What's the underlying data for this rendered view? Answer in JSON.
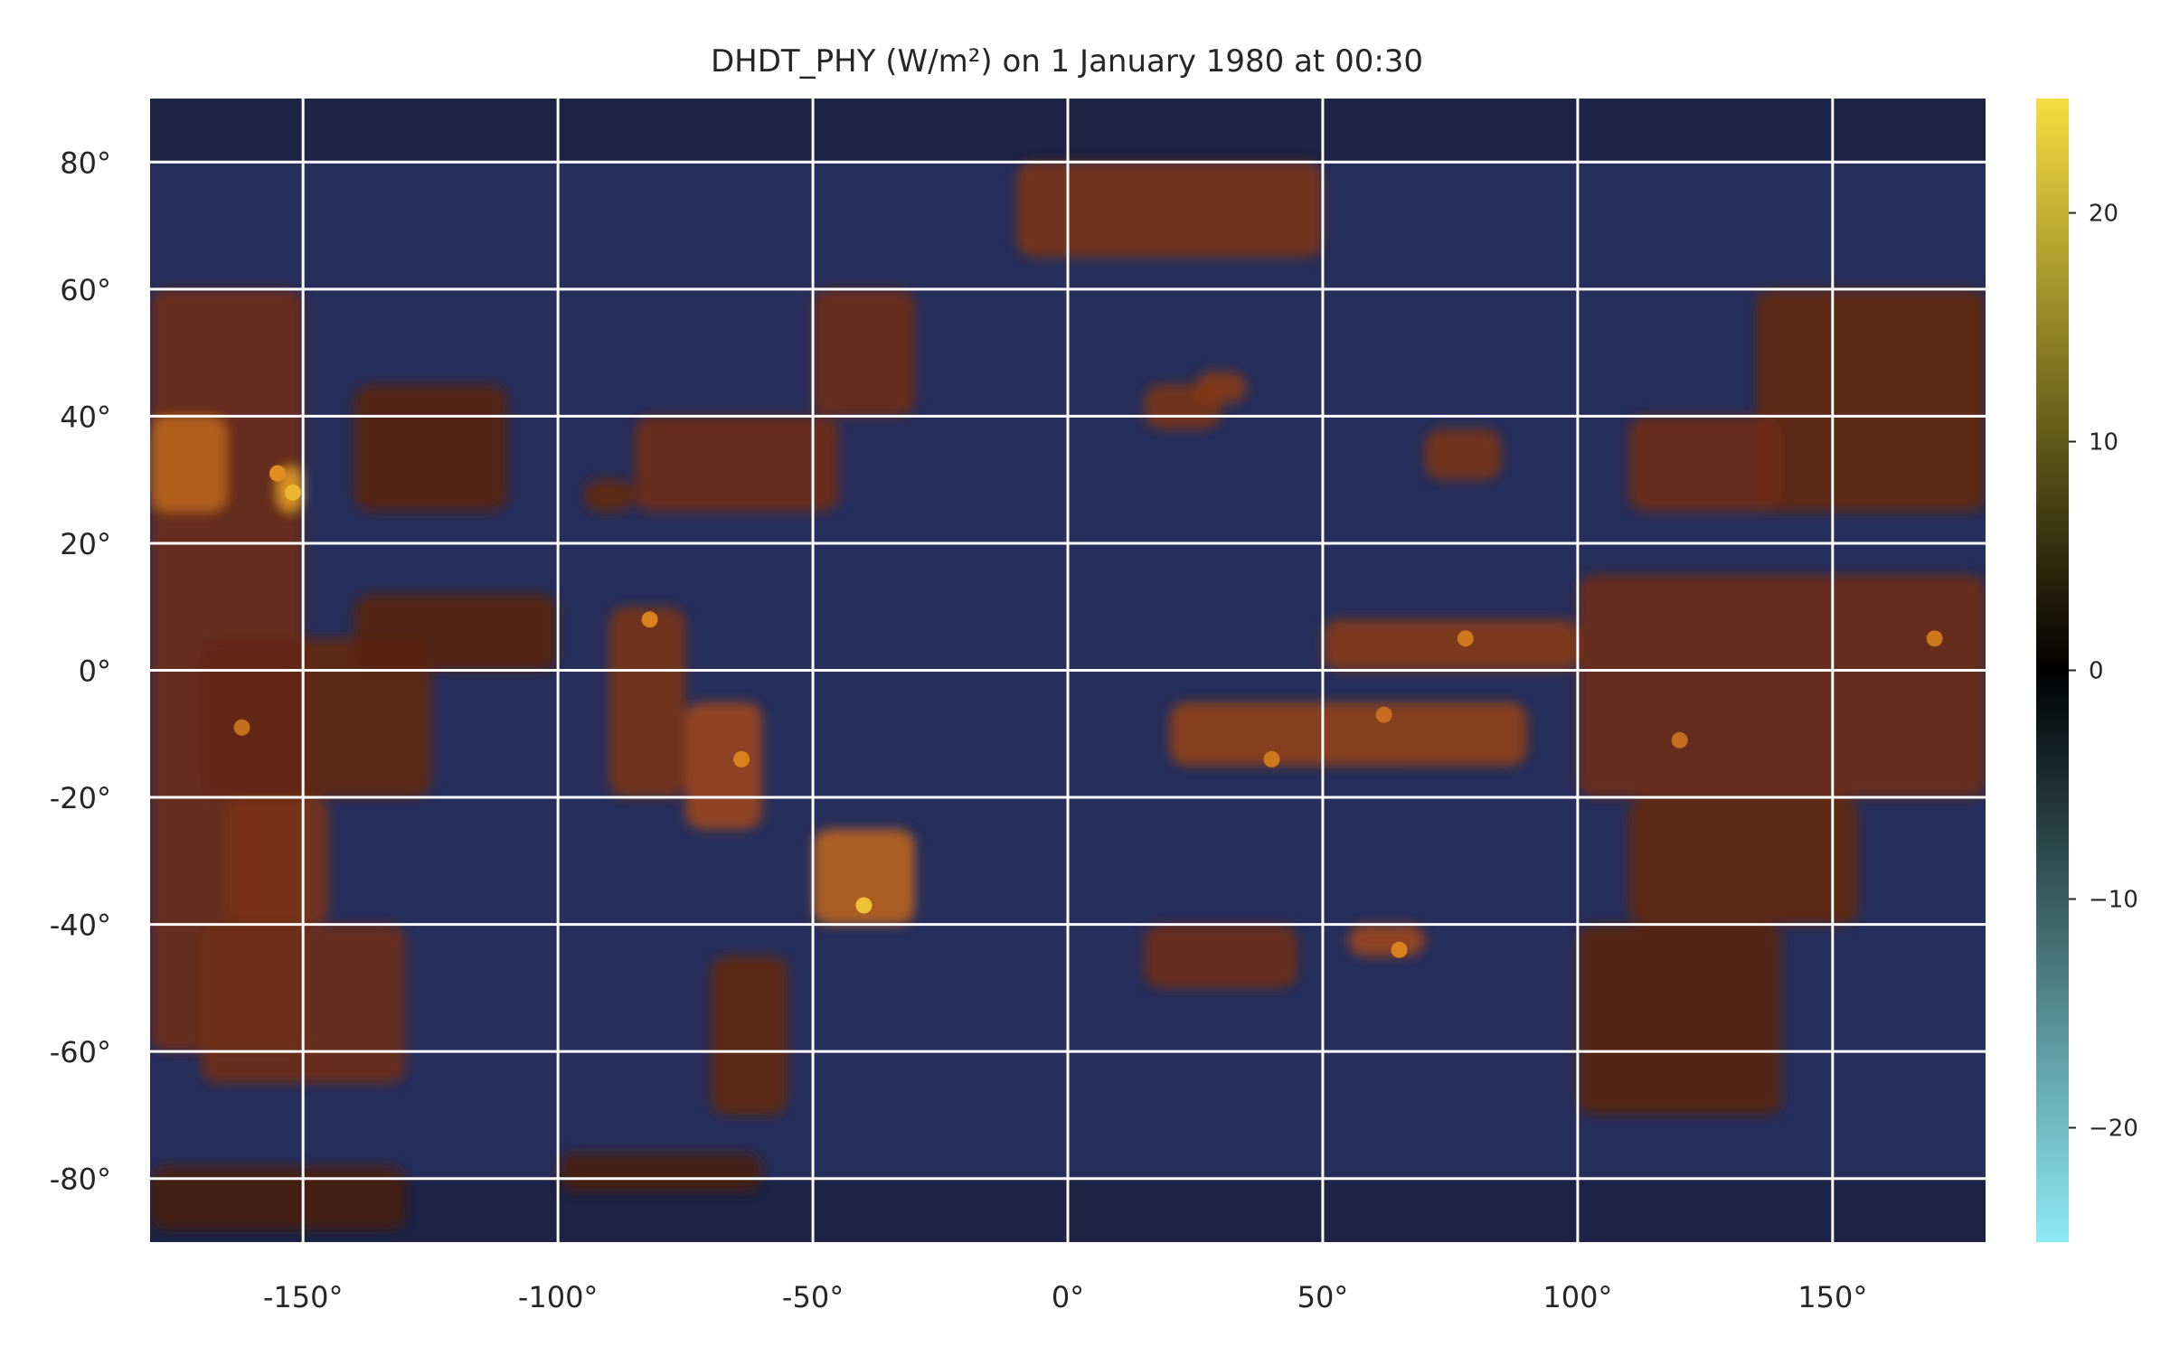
{
  "chart_data": {
    "type": "heatmap",
    "title": "DHDT_PHY (W/m²) on 1 January 1980 at 00:30",
    "xlabel": "",
    "ylabel": "",
    "xlim": [
      -180,
      180
    ],
    "ylim": [
      -90,
      90
    ],
    "grid": true,
    "x_ticks": [
      {
        "value": -150,
        "label": "-150°"
      },
      {
        "value": -100,
        "label": "-100°"
      },
      {
        "value": -50,
        "label": "-50°"
      },
      {
        "value": 0,
        "label": "0°"
      },
      {
        "value": 50,
        "label": "50°"
      },
      {
        "value": 100,
        "label": "100°"
      },
      {
        "value": 150,
        "label": "150°"
      }
    ],
    "y_ticks": [
      {
        "value": 80,
        "label": "80°"
      },
      {
        "value": 60,
        "label": "60°"
      },
      {
        "value": 40,
        "label": "40°"
      },
      {
        "value": 20,
        "label": "20°"
      },
      {
        "value": 0,
        "label": "0°"
      },
      {
        "value": -20,
        "label": "-20°"
      },
      {
        "value": -40,
        "label": "-40°"
      },
      {
        "value": -60,
        "label": "-60°"
      },
      {
        "value": -80,
        "label": "-80°"
      }
    ],
    "colorbar": {
      "range": [
        -25,
        25
      ],
      "ticks": [
        {
          "value": 20,
          "label": "20"
        },
        {
          "value": 10,
          "label": "10"
        },
        {
          "value": 0,
          "label": "0"
        },
        {
          "value": -10,
          "label": "−10"
        },
        {
          "value": -20,
          "label": "−20"
        }
      ],
      "colors": [
        "#8eeaf5",
        "#1a95e0",
        "#3b5fc4",
        "#2f3a72",
        "#000000",
        "#5a2312",
        "#a14a1e",
        "#e08a1e",
        "#f5dd40"
      ]
    },
    "background_value": -5,
    "regions": [
      {
        "lon": [
          -180,
          -150
        ],
        "lat": [
          -60,
          60
        ],
        "value": 8
      },
      {
        "lon": [
          -180,
          -165
        ],
        "lat": [
          25,
          40
        ],
        "value": 15
      },
      {
        "lon": [
          -155,
          -150
        ],
        "lat": [
          25,
          32
        ],
        "value": 20
      },
      {
        "lon": [
          -170,
          -125
        ],
        "lat": [
          -20,
          5
        ],
        "value": 7
      },
      {
        "lon": [
          -165,
          -145
        ],
        "lat": [
          -40,
          -20
        ],
        "value": 9
      },
      {
        "lon": [
          -170,
          -130
        ],
        "lat": [
          -65,
          -40
        ],
        "value": 8
      },
      {
        "lon": [
          -140,
          -110
        ],
        "lat": [
          25,
          45
        ],
        "value": 6
      },
      {
        "lon": [
          -140,
          -100
        ],
        "lat": [
          0,
          12
        ],
        "value": 6
      },
      {
        "lon": [
          -90,
          -75
        ],
        "lat": [
          -20,
          10
        ],
        "value": 9
      },
      {
        "lon": [
          -75,
          -60
        ],
        "lat": [
          -25,
          -5
        ],
        "value": 12
      },
      {
        "lon": [
          -50,
          -30
        ],
        "lat": [
          -40,
          -25
        ],
        "value": 15
      },
      {
        "lon": [
          -85,
          -45
        ],
        "lat": [
          25,
          40
        ],
        "value": 8
      },
      {
        "lon": [
          -50,
          -30
        ],
        "lat": [
          40,
          60
        ],
        "value": 8
      },
      {
        "lon": [
          -95,
          -85
        ],
        "lat": [
          25,
          30
        ],
        "value": 7
      },
      {
        "lon": [
          -10,
          50
        ],
        "lat": [
          65,
          80
        ],
        "value": 9
      },
      {
        "lon": [
          15,
          30
        ],
        "lat": [
          38,
          45
        ],
        "value": 9
      },
      {
        "lon": [
          25,
          35
        ],
        "lat": [
          42,
          47
        ],
        "value": 10
      },
      {
        "lon": [
          70,
          85
        ],
        "lat": [
          30,
          38
        ],
        "value": 9
      },
      {
        "lon": [
          50,
          100
        ],
        "lat": [
          0,
          8
        ],
        "value": 10
      },
      {
        "lon": [
          20,
          90
        ],
        "lat": [
          -15,
          -5
        ],
        "value": 11
      },
      {
        "lon": [
          55,
          70
        ],
        "lat": [
          -45,
          -40
        ],
        "value": 12
      },
      {
        "lon": [
          15,
          45
        ],
        "lat": [
          -50,
          -40
        ],
        "value": 8
      },
      {
        "lon": [
          -70,
          -55
        ],
        "lat": [
          -70,
          -45
        ],
        "value": 7
      },
      {
        "lon": [
          100,
          180
        ],
        "lat": [
          -20,
          15
        ],
        "value": 8
      },
      {
        "lon": [
          110,
          155
        ],
        "lat": [
          -40,
          -20
        ],
        "value": 7
      },
      {
        "lon": [
          135,
          180
        ],
        "lat": [
          25,
          60
        ],
        "value": 7
      },
      {
        "lon": [
          100,
          140
        ],
        "lat": [
          -70,
          -40
        ],
        "value": 6
      },
      {
        "lon": [
          110,
          140
        ],
        "lat": [
          25,
          40
        ],
        "value": 8
      },
      {
        "lon": [
          -180,
          -130
        ],
        "lat": [
          -88,
          -78
        ],
        "value": 5
      },
      {
        "lon": [
          -100,
          -60
        ],
        "lat": [
          -82,
          -76
        ],
        "value": 5
      }
    ],
    "hotspots": [
      {
        "lon": -152,
        "lat": 28,
        "value": 22
      },
      {
        "lon": -155,
        "lat": 31,
        "value": 19
      },
      {
        "lon": -40,
        "lat": -37,
        "value": 23
      },
      {
        "lon": -64,
        "lat": -14,
        "value": 18
      },
      {
        "lon": -82,
        "lat": 8,
        "value": 18
      },
      {
        "lon": 78,
        "lat": 5,
        "value": 17
      },
      {
        "lon": 62,
        "lat": -7,
        "value": 16
      },
      {
        "lon": 40,
        "lat": -14,
        "value": 17
      },
      {
        "lon": 65,
        "lat": -44,
        "value": 18
      },
      {
        "lon": 170,
        "lat": 5,
        "value": 17
      },
      {
        "lon": 120,
        "lat": -11,
        "value": 16
      },
      {
        "lon": -162,
        "lat": -9,
        "value": 16
      }
    ]
  }
}
